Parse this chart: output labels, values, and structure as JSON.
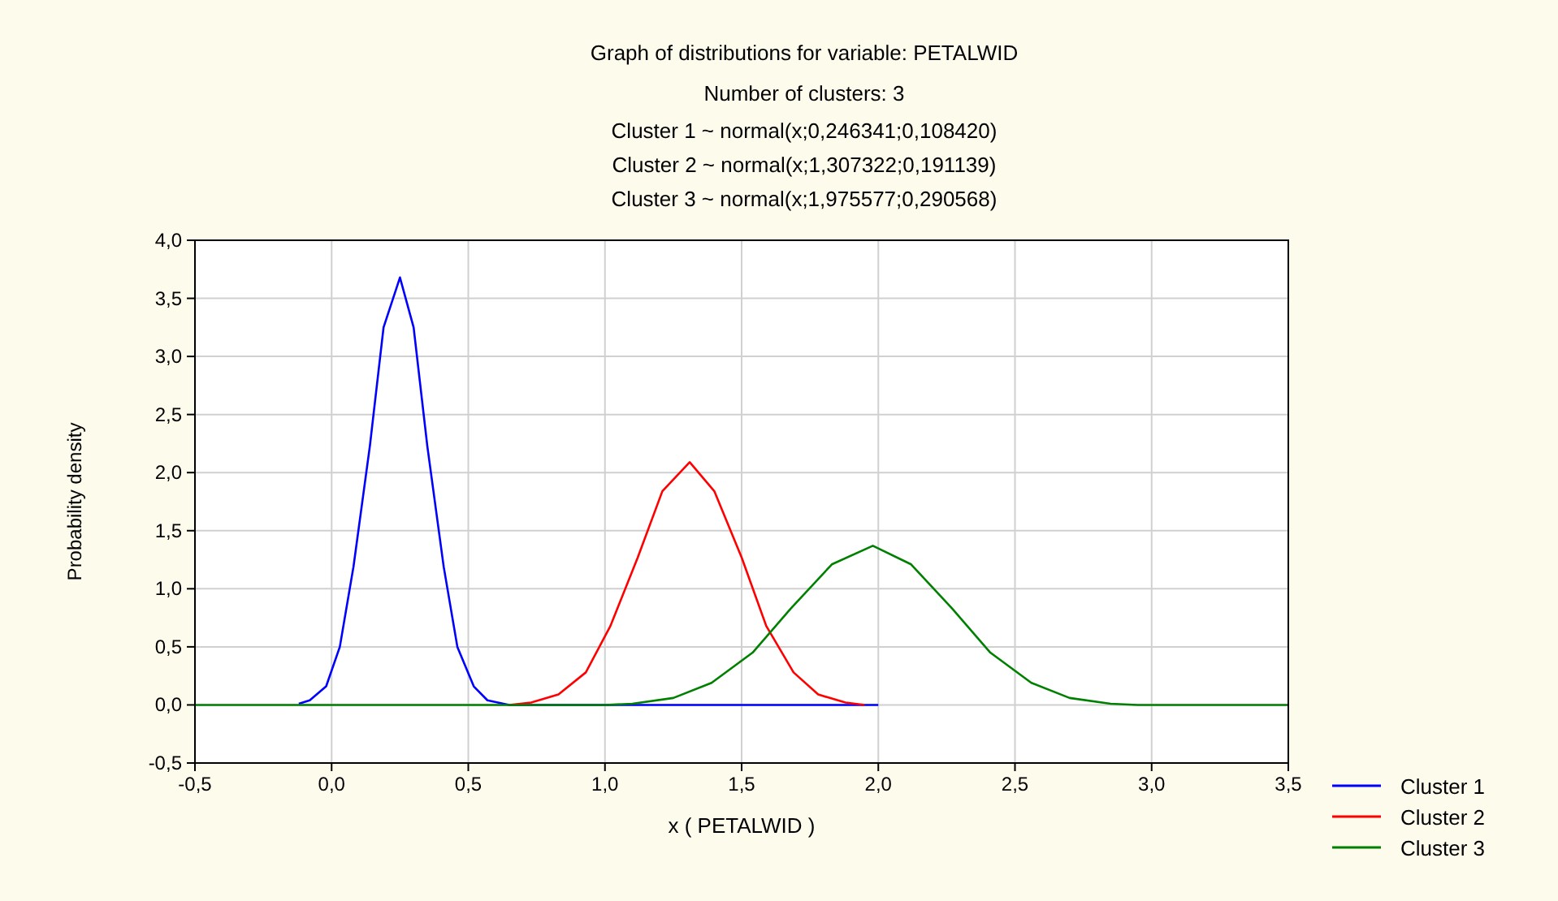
{
  "chart_data": {
    "type": "line",
    "title": "Graph of distributions for variable: PETALWID",
    "subtitle": "Number of clusters: 3",
    "annotations": [
      "Cluster 1 ~ normal(x;0,246341;0,108420)",
      "Cluster 2 ~ normal(x;1,307322;0,191139)",
      "Cluster 3 ~ normal(x;1,975577;0,290568)"
    ],
    "xlabel": "x ( PETALWID )",
    "ylabel": "Probability density",
    "xlim": [
      -0.5,
      3.5
    ],
    "ylim": [
      -0.5,
      4.0
    ],
    "xticks": [
      {
        "value": -0.5,
        "label": "-0,5"
      },
      {
        "value": 0,
        "label": "0,0"
      },
      {
        "value": 0.5,
        "label": "0,5"
      },
      {
        "value": 1,
        "label": "1,0"
      },
      {
        "value": 1.5,
        "label": "1,5"
      },
      {
        "value": 2,
        "label": "2,0"
      },
      {
        "value": 2.5,
        "label": "2,5"
      },
      {
        "value": 3,
        "label": "3,0"
      },
      {
        "value": 3.5,
        "label": "3,5"
      }
    ],
    "yticks": [
      {
        "value": -0.5,
        "label": "-0,5"
      },
      {
        "value": 0,
        "label": "0,0"
      },
      {
        "value": 0.5,
        "label": "0,5"
      },
      {
        "value": 1,
        "label": "1,0"
      },
      {
        "value": 1.5,
        "label": "1,5"
      },
      {
        "value": 2,
        "label": "2,0"
      },
      {
        "value": 2.5,
        "label": "2,5"
      },
      {
        "value": 3,
        "label": "3,0"
      },
      {
        "value": 3.5,
        "label": "3,5"
      },
      {
        "value": 4,
        "label": "4,0"
      }
    ],
    "grid": true,
    "legend": "bottom right",
    "marker": "none",
    "line_style": "solid",
    "series": [
      {
        "name": "Cluster 1",
        "color": "#0000ff",
        "x": [
          -0.12,
          -0.08,
          -0.02,
          0.03,
          0.08,
          0.14,
          0.19,
          0.25,
          0.3,
          0.35,
          0.41,
          0.46,
          0.52,
          0.57,
          0.65,
          1.0,
          2.0
        ],
        "values": [
          0.01,
          0.04,
          0.16,
          0.5,
          1.19,
          2.23,
          3.25,
          3.68,
          3.25,
          2.23,
          1.19,
          0.5,
          0.16,
          0.04,
          0,
          0,
          0
        ]
      },
      {
        "name": "Cluster 2",
        "color": "#ff0000",
        "x": [
          0.65,
          0.73,
          0.83,
          0.93,
          1.02,
          1.12,
          1.21,
          1.31,
          1.4,
          1.5,
          1.59,
          1.69,
          1.78,
          1.88,
          1.95
        ],
        "values": [
          0,
          0.02,
          0.09,
          0.28,
          0.68,
          1.27,
          1.84,
          2.09,
          1.84,
          1.27,
          0.68,
          0.28,
          0.09,
          0.02,
          0
        ]
      },
      {
        "name": "Cluster 3",
        "color": "#008000",
        "x": [
          -0.5,
          1.0,
          1.1,
          1.25,
          1.39,
          1.54,
          1.68,
          1.83,
          1.98,
          2.12,
          2.27,
          2.41,
          2.56,
          2.7,
          2.85,
          2.95,
          3.5
        ],
        "values": [
          0,
          0,
          0.01,
          0.06,
          0.19,
          0.45,
          0.83,
          1.21,
          1.37,
          1.21,
          0.83,
          0.45,
          0.19,
          0.06,
          0.01,
          0,
          0
        ]
      }
    ]
  }
}
